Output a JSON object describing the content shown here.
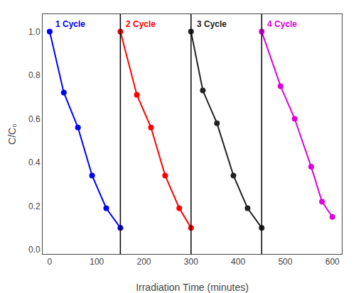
{
  "chart_data": {
    "type": "line",
    "xlabel": "Irradiation Time (minutes)",
    "ylabel": "C/C₀",
    "marker": "circle",
    "grid": false,
    "series": [
      {
        "name": "1 Cycle",
        "color": "blue",
        "x": [
          0,
          30,
          60,
          90,
          120,
          150
        ],
        "values": [
          1.0,
          0.72,
          0.56,
          0.34,
          0.19,
          0.1
        ]
      },
      {
        "name": "2 Cycle",
        "color": "red",
        "x": [
          150,
          185,
          215,
          245,
          275,
          300
        ],
        "values": [
          1.0,
          0.71,
          0.56,
          0.34,
          0.19,
          0.1
        ]
      },
      {
        "name": "3 Cycle",
        "color": "#222222",
        "x": [
          300,
          325,
          355,
          390,
          420,
          450
        ],
        "values": [
          1.0,
          0.73,
          0.58,
          0.34,
          0.19,
          0.1
        ]
      },
      {
        "name": "4 Cycle",
        "color": "#dd00dd",
        "x": [
          450,
          490,
          520,
          555,
          578,
          600
        ],
        "values": [
          1.0,
          0.75,
          0.6,
          0.38,
          0.22,
          0.15
        ]
      }
    ],
    "vlines": [
      150,
      300,
      450
    ],
    "xlim": [
      -15,
      620
    ],
    "xticks": [
      0,
      100,
      200,
      300,
      400,
      500,
      600
    ],
    "ylim": [
      -0.02,
      1.08
    ],
    "yticks": [
      {
        "value": 0.0,
        "label": "0.0"
      },
      {
        "value": 0.2,
        "label": "0.2"
      },
      {
        "value": 0.4,
        "label": "0.4"
      },
      {
        "value": 0.6,
        "label": "0.6"
      },
      {
        "value": 0.8,
        "label": "0.8"
      },
      {
        "value": 1.0,
        "label": "1.0"
      }
    ]
  }
}
